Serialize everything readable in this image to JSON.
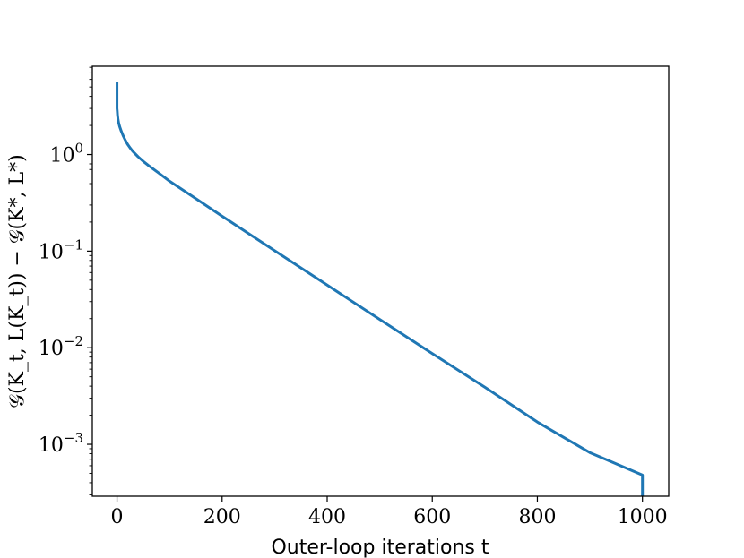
{
  "chart_data": {
    "type": "line",
    "title": "",
    "xlabel": "Outer-loop iterations t",
    "ylabel": "𝒢(K_t, L(K_t)) − 𝒢(K*, L*)",
    "xlim": [
      -47,
      1050
    ],
    "ylim": [
      0.00029,
      8.2
    ],
    "yscale": "log",
    "grid": false,
    "legend": "none",
    "x_ticks": [
      {
        "value": 0,
        "label": "0"
      },
      {
        "value": 200,
        "label": "200"
      },
      {
        "value": 400,
        "label": "400"
      },
      {
        "value": 600,
        "label": "600"
      },
      {
        "value": 800,
        "label": "800"
      },
      {
        "value": 1000,
        "label": "1000"
      }
    ],
    "y_ticks": [
      {
        "value": 1,
        "base": "10",
        "exp": "0"
      },
      {
        "value": 0.1,
        "base": "10",
        "exp": "−1"
      },
      {
        "value": 0.01,
        "base": "10",
        "exp": "−2"
      },
      {
        "value": 0.001,
        "base": "10",
        "exp": "−3"
      }
    ],
    "series": [
      {
        "color": "#1f77b4",
        "x": [
          0,
          0,
          0.5,
          1,
          2,
          3,
          5,
          8,
          12,
          16,
          20,
          25,
          30,
          40,
          50,
          60,
          80,
          100,
          150,
          200,
          300,
          400,
          500,
          600,
          700,
          800,
          900,
          1000,
          1000
        ],
        "y": [
          5.6,
          3.0,
          2.8,
          2.55,
          2.3,
          2.15,
          1.95,
          1.75,
          1.55,
          1.4,
          1.28,
          1.17,
          1.08,
          0.95,
          0.85,
          0.77,
          0.64,
          0.53,
          0.35,
          0.23,
          0.101,
          0.0445,
          0.0196,
          0.0087,
          0.0039,
          0.0017,
          0.00082,
          0.00048,
          0.00029
        ]
      }
    ]
  }
}
